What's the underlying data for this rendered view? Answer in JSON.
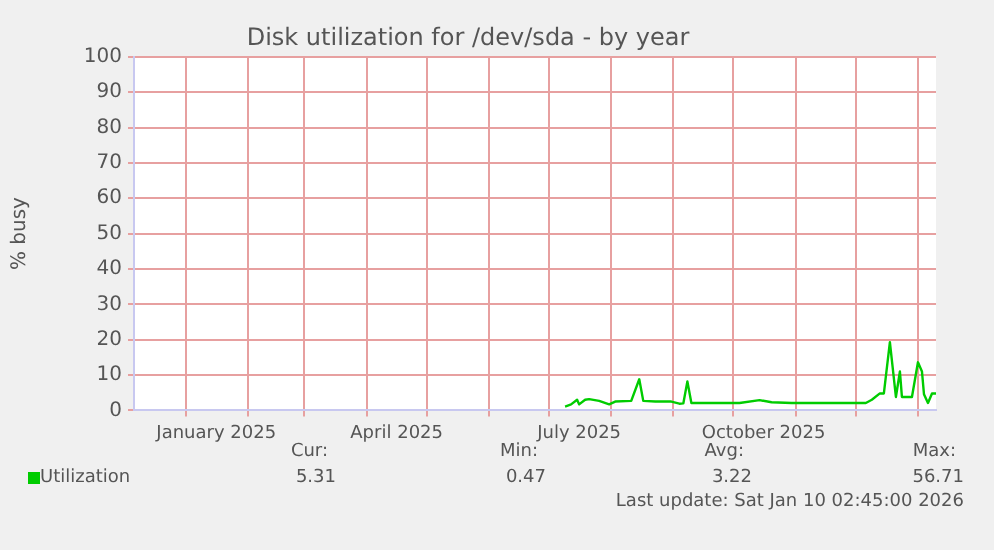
{
  "chart_data": {
    "type": "line",
    "title": "Disk utilization for /dev/sda - by year",
    "ylabel": "% busy",
    "xlim": [
      "2024-12-06",
      "2026-01-10"
    ],
    "xticks": [
      {
        "value": "2025-01-01",
        "label": null
      },
      {
        "value": "2025-01-16",
        "label": "January 2025"
      },
      {
        "value": "2025-02-01",
        "label": null
      },
      {
        "value": "2025-03-01",
        "label": null
      },
      {
        "value": "2025-04-01",
        "label": null
      },
      {
        "value": "2025-04-16",
        "label": "April 2025"
      },
      {
        "value": "2025-05-01",
        "label": null
      },
      {
        "value": "2025-06-01",
        "label": null
      },
      {
        "value": "2025-07-01",
        "label": null
      },
      {
        "value": "2025-07-16",
        "label": "July 2025"
      },
      {
        "value": "2025-08-01",
        "label": null
      },
      {
        "value": "2025-09-01",
        "label": null
      },
      {
        "value": "2025-10-01",
        "label": null
      },
      {
        "value": "2025-10-16",
        "label": "October 2025"
      },
      {
        "value": "2025-11-01",
        "label": null
      },
      {
        "value": "2025-12-01",
        "label": null
      },
      {
        "value": "2026-01-01",
        "label": null
      }
    ],
    "ylim": [
      0,
      100
    ],
    "yticks": [
      0,
      10,
      20,
      30,
      40,
      50,
      60,
      70,
      80,
      90,
      100
    ],
    "grid": true,
    "legend": "bottom left",
    "marker": "none",
    "line_style": "solid",
    "series": [
      {
        "name": "Utilization",
        "color": "#00cc00",
        "x": [
          "2025-07-09",
          "2025-07-12",
          "2025-07-15",
          "2025-07-16",
          "2025-07-19",
          "2025-07-21",
          "2025-07-26",
          "2025-07-31",
          "2025-08-03",
          "2025-08-11",
          "2025-08-15",
          "2025-08-17",
          "2025-08-23",
          "2025-08-31",
          "2025-09-04",
          "2025-09-06",
          "2025-09-08",
          "2025-09-10",
          "2025-09-17",
          "2025-10-04",
          "2025-10-14",
          "2025-10-20",
          "2025-10-30",
          "2025-11-23",
          "2025-12-02",
          "2025-12-06",
          "2025-12-09",
          "2025-12-13",
          "2025-12-15",
          "2025-12-18",
          "2025-12-21",
          "2025-12-23",
          "2025-12-24",
          "2025-12-29",
          "2026-01-01",
          "2026-01-03",
          "2026-01-04",
          "2026-01-06",
          "2026-01-08",
          "2026-01-10"
        ],
        "values": [
          1.1,
          1.7,
          3,
          1.7,
          3,
          3.2,
          2.7,
          1.7,
          2.5,
          2.7,
          8.8,
          2.7,
          2.5,
          2.5,
          1.9,
          2,
          8.2,
          2.1,
          2.1,
          2.1,
          2.9,
          2.3,
          2.1,
          2.1,
          2.1,
          2.1,
          3,
          4.8,
          4.8,
          19.3,
          3.8,
          11,
          3.8,
          3.8,
          13.6,
          11,
          4.6,
          2.1,
          4.8,
          4.8
        ]
      }
    ],
    "annotations": [
      "Cur:",
      "5.31",
      "Min:",
      "0.47",
      "Avg:",
      "3.22",
      "Max:",
      "56.71",
      "Last update: Sat Jan 10 02:45:00 2026"
    ]
  }
}
